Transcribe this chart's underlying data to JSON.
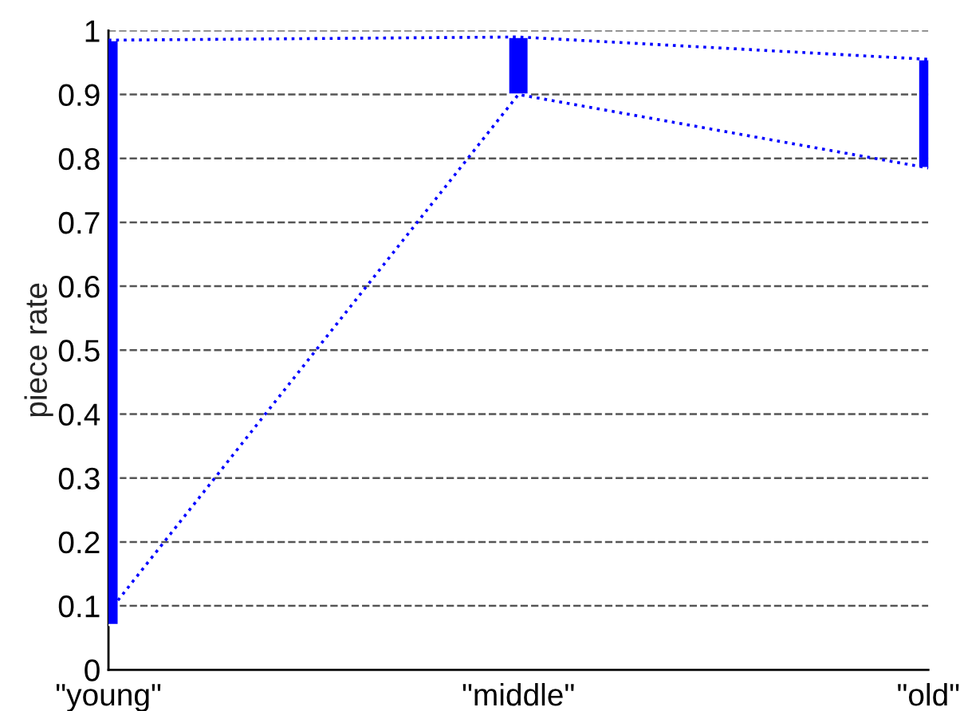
{
  "chart_data": {
    "type": "bar",
    "ylabel": "piece rate",
    "categories": [
      "\"young\"",
      "\"middle\"",
      "\"old\""
    ],
    "series": [
      {
        "color": "#0000ff",
        "base": [
          0.07,
          0.9,
          0.785
        ],
        "values": [
          0.915,
          0.09,
          0.17
        ]
      },
      {
        "type": "line",
        "color": "#0000ff",
        "line_style": "dotted",
        "values": [
          0.985,
          0.99,
          0.955
        ]
      },
      {
        "type": "line",
        "color": "#0000ff",
        "line_style": "dotted",
        "values": [
          0.09,
          0.9,
          0.785
        ]
      }
    ],
    "ylim": [
      0,
      1
    ],
    "yticks": [
      0,
      0.1,
      0.2,
      0.3,
      0.4,
      0.5,
      0.6,
      0.7,
      0.8,
      0.9,
      1
    ],
    "grid": "y",
    "legend": false
  }
}
